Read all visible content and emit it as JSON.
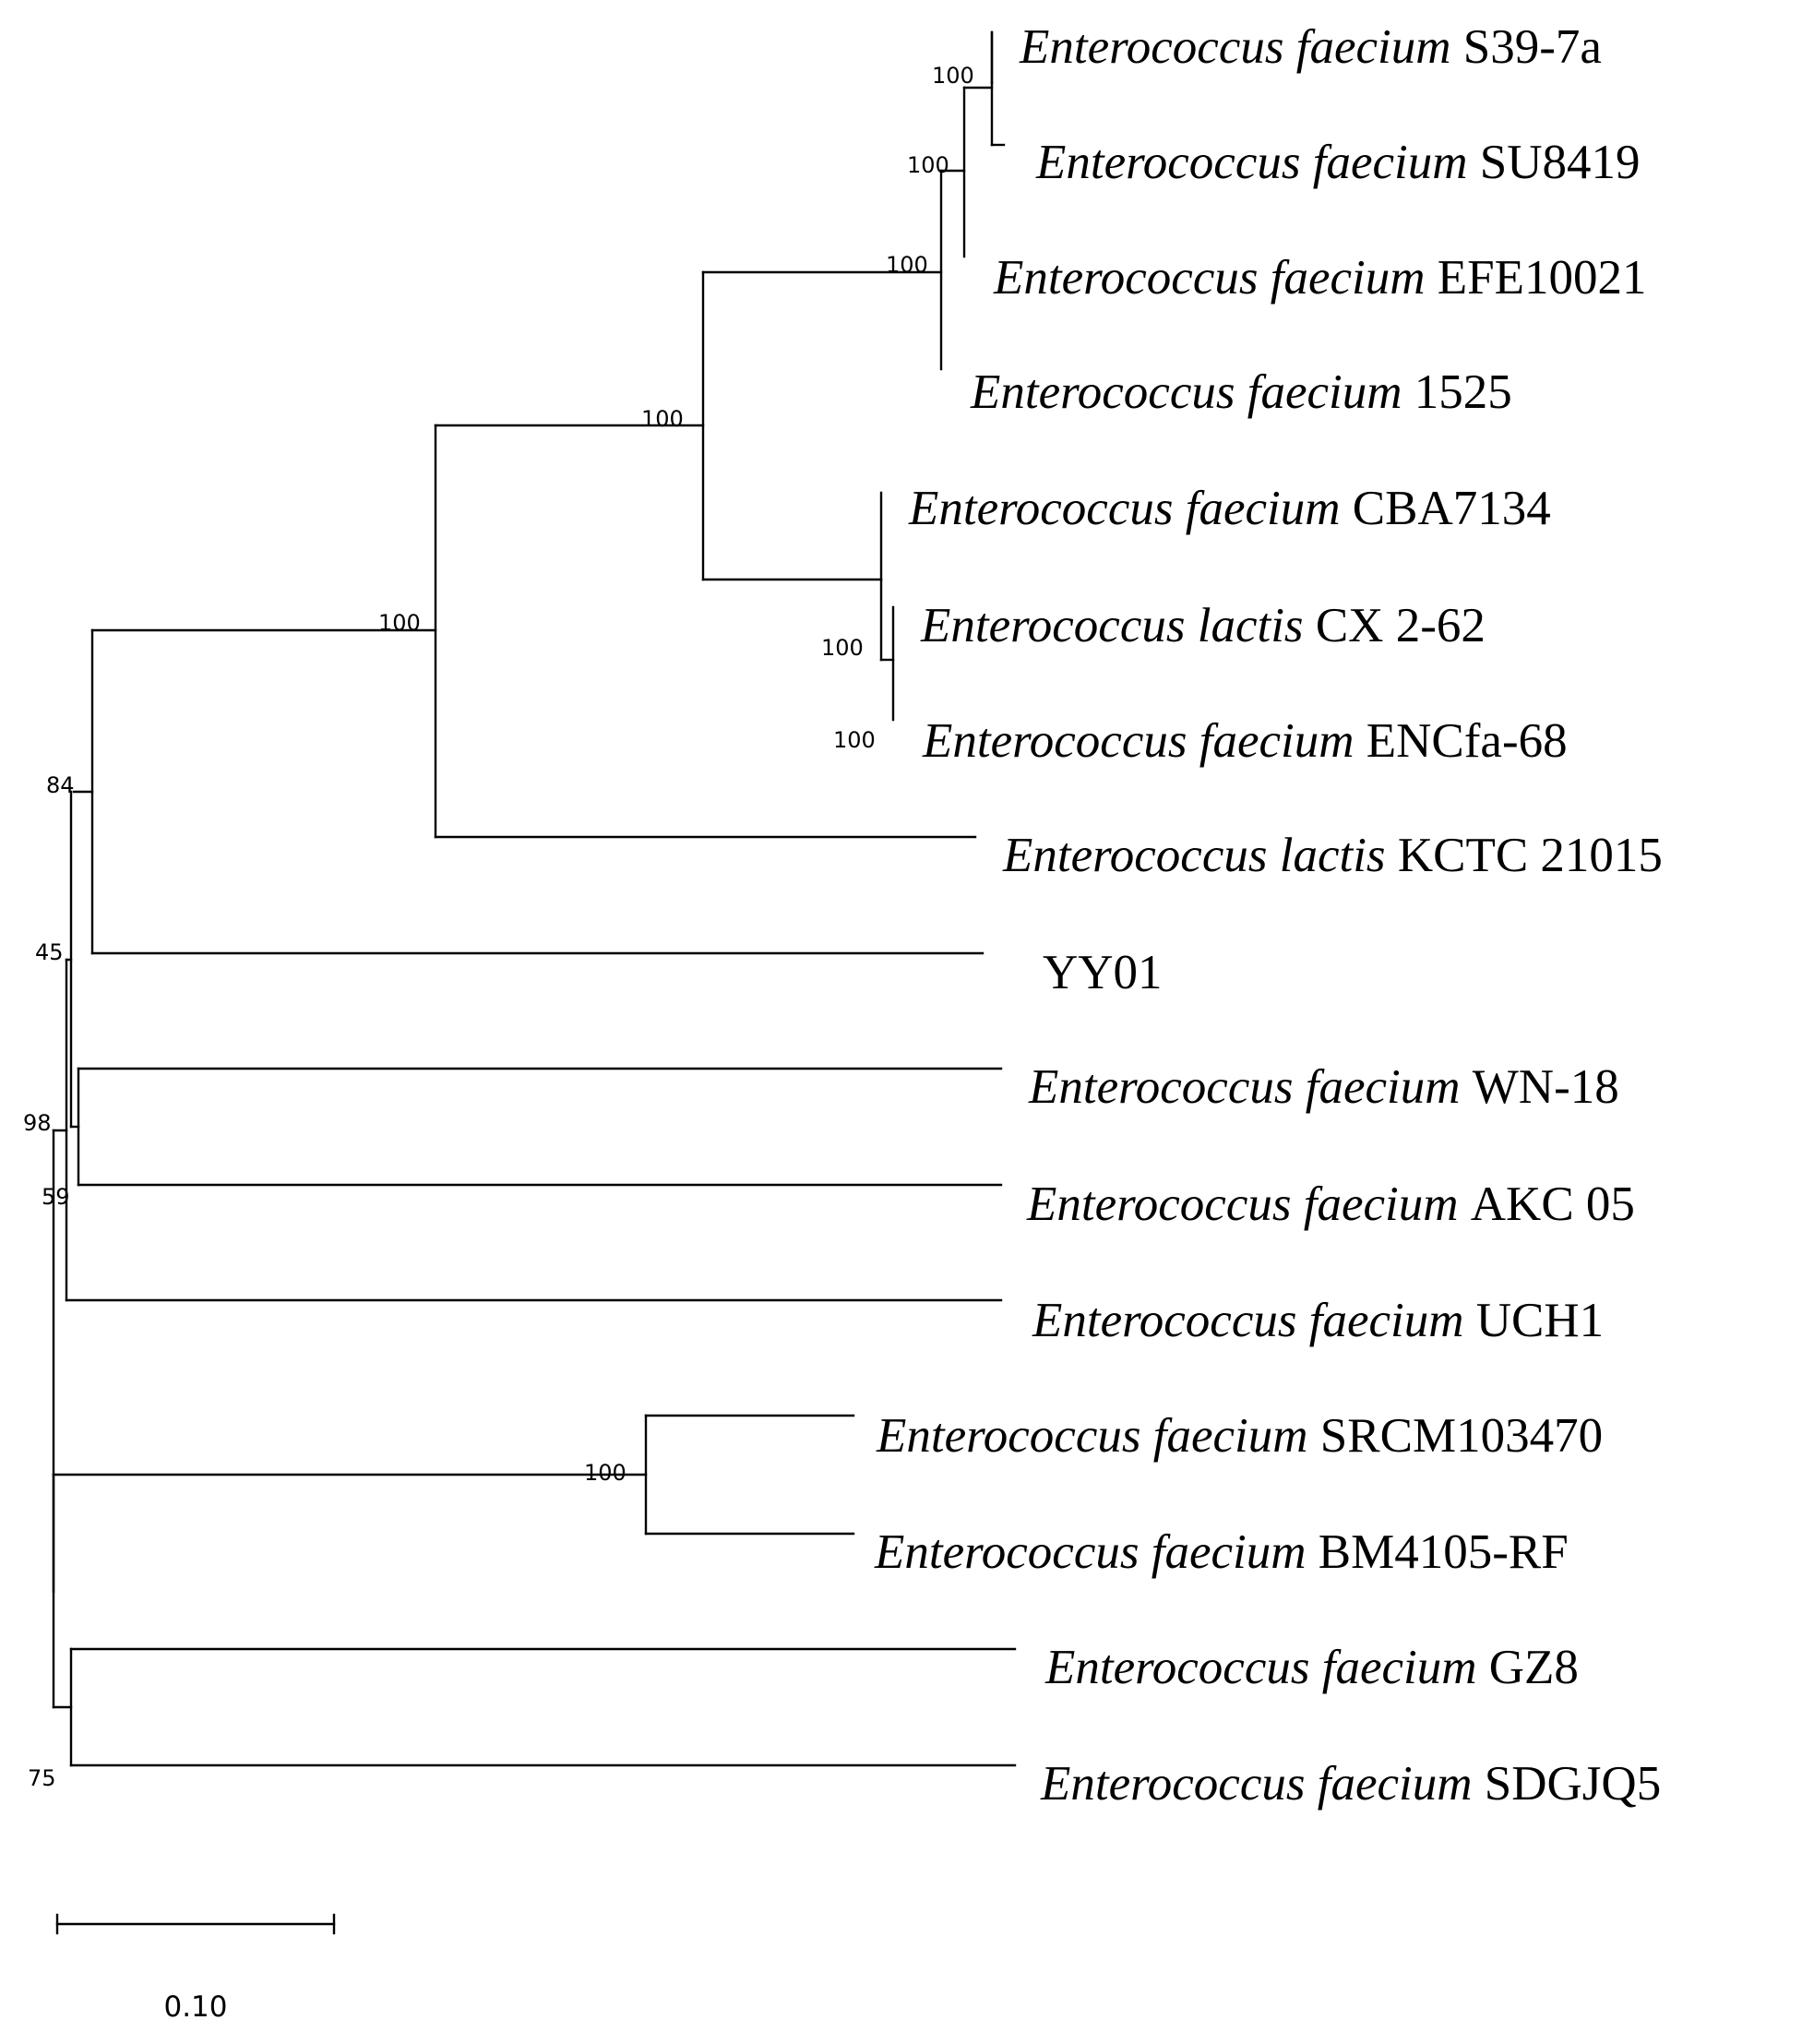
{
  "taxa": [
    {
      "id": "s39",
      "genus": "Enterococcus",
      "species": "faecium",
      "strain": "S39-7a"
    },
    {
      "id": "su84",
      "genus": "Enterococcus",
      "species": "faecium",
      "strain": "SU8419"
    },
    {
      "id": "efe",
      "genus": "Enterococcus",
      "species": "faecium",
      "strain": "EFE10021"
    },
    {
      "id": "f1525",
      "genus": "Enterococcus",
      "species": "faecium",
      "strain": "1525"
    },
    {
      "id": "cba",
      "genus": "Enterococcus",
      "species": "faecium",
      "strain": "CBA7134"
    },
    {
      "id": "cx",
      "genus": "Enterococcus",
      "species": "lactis",
      "strain": "CX 2-62"
    },
    {
      "id": "enc",
      "genus": "Enterococcus",
      "species": "faecium",
      "strain": "ENCfa-68"
    },
    {
      "id": "kctc",
      "genus": "Enterococcus",
      "species": "lactis",
      "strain": "KCTC 21015"
    },
    {
      "id": "yy01",
      "genus": "",
      "species": "",
      "strain": "YY01"
    },
    {
      "id": "wn18",
      "genus": "Enterococcus",
      "species": "faecium",
      "strain": "WN-18"
    },
    {
      "id": "akc",
      "genus": "Enterococcus",
      "species": "faecium",
      "strain": "AKC 05"
    },
    {
      "id": "uch1",
      "genus": "Enterococcus",
      "species": "faecium",
      "strain": "UCH1"
    },
    {
      "id": "srcm",
      "genus": "Enterococcus",
      "species": "faecium",
      "strain": "SRCM103470"
    },
    {
      "id": "bm",
      "genus": "Enterococcus",
      "species": "faecium",
      "strain": "BM4105-RF"
    },
    {
      "id": "gz8",
      "genus": "Enterococcus",
      "species": "faecium",
      "strain": "GZ8"
    },
    {
      "id": "sdg",
      "genus": "Enterococcus",
      "species": "faecium",
      "strain": "SDGJQ5"
    }
  ],
  "bootstrap_values": [
    "100",
    "100",
    "100",
    "100",
    "100",
    "100",
    "100",
    "84",
    "45",
    "98",
    "59",
    "100",
    "75"
  ],
  "scale_bar": {
    "label": "0.10",
    "value": 0.1
  }
}
